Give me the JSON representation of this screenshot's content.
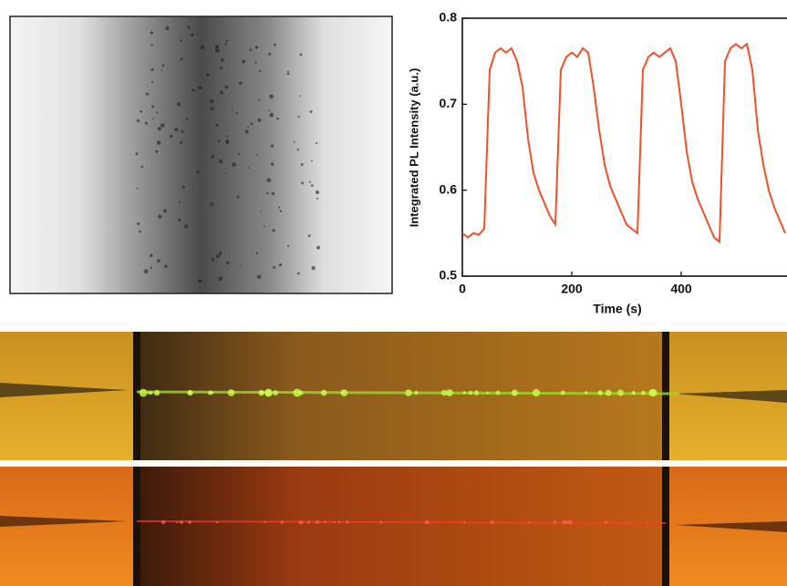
{
  "chart_data": {
    "type": "line",
    "ylabel": "Integrated PL Intensity (a.u.)",
    "xlabel": "Time (s)",
    "x": [
      0,
      10,
      20,
      30,
      40,
      50,
      60,
      70,
      80,
      90,
      100,
      110,
      120,
      130,
      140,
      150,
      160,
      170,
      180,
      190,
      200,
      210,
      220,
      230,
      240,
      250,
      260,
      270,
      280,
      290,
      300,
      310,
      320,
      330,
      340,
      350,
      360,
      370,
      380,
      390,
      400,
      410,
      420,
      430,
      440,
      450,
      460,
      470,
      480,
      490,
      500,
      510,
      520,
      530,
      540,
      550,
      560,
      570,
      580,
      590
    ],
    "values": [
      0.55,
      0.545,
      0.55,
      0.548,
      0.555,
      0.74,
      0.76,
      0.765,
      0.76,
      0.765,
      0.75,
      0.72,
      0.66,
      0.62,
      0.6,
      0.585,
      0.57,
      0.56,
      0.74,
      0.755,
      0.76,
      0.755,
      0.765,
      0.76,
      0.72,
      0.67,
      0.63,
      0.605,
      0.59,
      0.575,
      0.56,
      0.555,
      0.55,
      0.74,
      0.755,
      0.76,
      0.755,
      0.76,
      0.765,
      0.75,
      0.7,
      0.645,
      0.61,
      0.59,
      0.575,
      0.56,
      0.545,
      0.54,
      0.75,
      0.765,
      0.77,
      0.765,
      0.77,
      0.74,
      0.67,
      0.63,
      0.6,
      0.58,
      0.565,
      0.55
    ],
    "color": "#f0502a",
    "xlim": [
      0,
      593
    ],
    "xticks": [
      0,
      200,
      400
    ],
    "ylim": [
      0.5,
      0.8
    ],
    "yticks": [
      0.5,
      0.6,
      0.7,
      0.8
    ]
  }
}
